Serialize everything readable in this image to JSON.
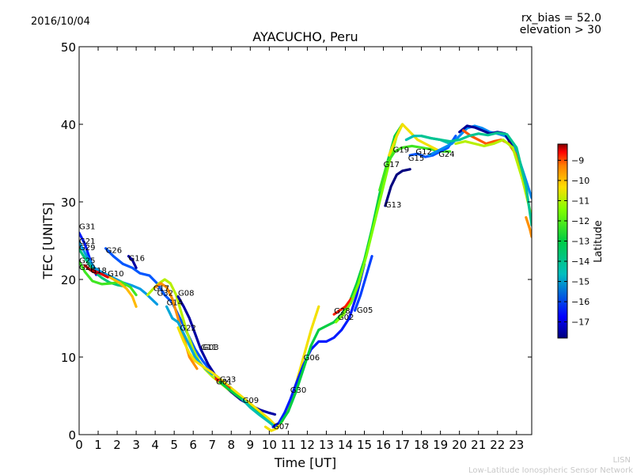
{
  "header": {
    "date": "2016/10/04",
    "rx_bias": "rx_bias = 52.0",
    "elevation": "elevation > 30"
  },
  "footer": {
    "lisn": "LISN",
    "network": "Low-Latitude Ionospheric Sensor Network"
  },
  "colors": {
    "axes": "#000000",
    "background": "#ffffff",
    "colormap": [
      "#00007f",
      "#0000ff",
      "#007fff",
      "#00bfbf",
      "#00cc44",
      "#7fff00",
      "#ffdd00",
      "#ff7f00",
      "#ff0000",
      "#7f0000"
    ]
  },
  "chart_data": {
    "type": "line",
    "title": "AYACUCHO, Peru",
    "xlabel": "Time [UT]",
    "ylabel": "TEC [UNITS]",
    "xlim": [
      0,
      23.8
    ],
    "ylim": [
      0,
      50
    ],
    "xticks": [
      0,
      1,
      2,
      3,
      4,
      5,
      6,
      7,
      8,
      9,
      10,
      11,
      12,
      13,
      14,
      15,
      16,
      17,
      18,
      19,
      20,
      21,
      22,
      23
    ],
    "yticks": [
      0,
      10,
      20,
      30,
      40,
      50
    ],
    "grid": false,
    "colorbar": {
      "label": "Latitude",
      "range": [
        -17.8,
        -8.2
      ],
      "ticks": [
        -9,
        -10,
        -11,
        -12,
        -13,
        -14,
        -15,
        -16,
        -17
      ]
    },
    "series": [
      {
        "name": "G31",
        "latitude": -16.5,
        "x": [
          0.0,
          0.3,
          0.6,
          0.9
        ],
        "y": [
          26.0,
          24.6,
          22.4,
          20.6
        ]
      },
      {
        "name": "G21",
        "latitude": -15.2,
        "x": [
          0.0,
          0.4,
          0.8,
          1.3,
          1.8,
          2.3,
          2.8,
          3.2,
          3.5,
          3.8,
          4.1
        ],
        "y": [
          24.8,
          23.0,
          21.5,
          20.8,
          20.2,
          19.6,
          19.2,
          18.8,
          18.2,
          17.5,
          16.8
        ]
      },
      {
        "name": "G29",
        "latitude": -14.0,
        "x": [
          0.0,
          0.4,
          0.8,
          1.2,
          1.6,
          2.0,
          2.4
        ],
        "y": [
          23.9,
          22.4,
          21.0,
          20.2,
          19.6,
          19.3,
          19.1
        ]
      },
      {
        "name": "G25",
        "latitude": -13.0,
        "x": [
          0.0,
          0.3,
          0.7,
          1.2,
          1.7,
          2.2,
          2.7,
          3.0
        ],
        "y": [
          22.3,
          21.0,
          19.8,
          19.4,
          19.5,
          19.7,
          19.0,
          18.0
        ]
      },
      {
        "name": "G26",
        "latitude": -16.0,
        "x": [
          1.4,
          1.8,
          2.3,
          2.8,
          3.2,
          3.7,
          4.1,
          4.5,
          4.9,
          5.3,
          5.7,
          6.1,
          6.5,
          7.0,
          7.5,
          8.0
        ],
        "y": [
          24.0,
          23.0,
          22.0,
          21.5,
          20.8,
          20.5,
          19.5,
          18.0,
          17.0,
          15.0,
          13.0,
          11.0,
          9.5,
          8.0,
          7.0,
          6.0
        ]
      },
      {
        "name": "G16",
        "latitude": -17.5,
        "x": [
          2.6,
          2.8,
          3.0
        ],
        "y": [
          23.0,
          22.5,
          21.5
        ]
      },
      {
        "name": "G10",
        "latitude": -11.0,
        "x": [
          1.6,
          2.1,
          2.5,
          2.8,
          3.0
        ],
        "y": [
          20.3,
          19.6,
          18.8,
          17.8,
          16.5
        ]
      },
      {
        "name": "G18",
        "latitude": -9.0,
        "x": [
          0.7,
          1.1,
          1.5
        ],
        "y": [
          21.2,
          20.8,
          20.3
        ]
      },
      {
        "name": "G23",
        "latitude": -8.5,
        "x": [
          0.3,
          0.6,
          0.9
        ],
        "y": [
          21.8,
          21.2,
          20.8
        ]
      },
      {
        "name": "G17",
        "latitude": -12.0,
        "x": [
          3.6,
          3.9,
          4.2,
          4.5,
          4.8,
          5.1,
          5.4,
          5.7,
          6.0,
          6.3,
          6.6,
          7.0,
          7.5,
          8.0,
          8.5
        ],
        "y": [
          18.0,
          18.8,
          19.5,
          20.0,
          19.5,
          18.0,
          15.5,
          13.0,
          11.0,
          9.5,
          8.5,
          7.5,
          6.5,
          5.5,
          4.5
        ]
      },
      {
        "name": "G32",
        "latitude": -10.5,
        "x": [
          4.0,
          4.3,
          4.6,
          4.9,
          5.2,
          5.5,
          5.8,
          6.2
        ],
        "y": [
          19.0,
          19.5,
          19.0,
          17.5,
          15.0,
          12.5,
          10.0,
          8.5
        ]
      },
      {
        "name": "G08",
        "latitude": -17.5,
        "x": [
          5.2,
          5.5,
          5.8,
          6.1,
          6.4,
          6.8,
          7.2,
          7.6,
          8.0,
          8.5,
          9.0,
          9.5,
          10.0,
          10.3
        ],
        "y": [
          17.8,
          16.5,
          15.0,
          13.0,
          11.0,
          9.0,
          7.5,
          6.5,
          5.5,
          4.5,
          3.8,
          3.2,
          2.8,
          2.6
        ]
      },
      {
        "name": "G14",
        "latitude": -15.0,
        "x": [
          4.6,
          4.9,
          5.2,
          5.5,
          5.8,
          6.1,
          6.5,
          7.0
        ],
        "y": [
          16.5,
          15.0,
          14.5,
          13.0,
          11.5,
          10.0,
          8.8,
          7.8
        ]
      },
      {
        "name": "G22",
        "latitude": -11.5,
        "x": [
          5.2,
          5.5,
          5.8,
          6.1,
          6.5,
          7.0,
          7.5,
          8.0,
          8.5,
          9.0,
          9.5,
          10.0,
          10.4
        ],
        "y": [
          13.8,
          12.0,
          10.5,
          9.5,
          8.8,
          8.0,
          7.0,
          6.0,
          5.0,
          4.0,
          3.0,
          2.0,
          1.0
        ]
      },
      {
        "name": "G01",
        "latitude": -9.5,
        "x": [
          7.2,
          7.5,
          7.9
        ],
        "y": [
          7.2,
          6.6,
          6.0
        ]
      },
      {
        "name": "G03",
        "latitude": -13.5,
        "x": [
          7.4,
          7.8,
          8.2,
          8.6,
          9.0,
          9.5,
          10.0,
          10.4
        ],
        "y": [
          6.8,
          6.0,
          5.2,
          4.5,
          3.6,
          2.6,
          1.6,
          0.8
        ]
      },
      {
        "name": "G09",
        "latitude": -14.5,
        "x": [
          8.6,
          9.0,
          9.5,
          10.0,
          10.3
        ],
        "y": [
          4.5,
          3.5,
          2.5,
          1.6,
          1.0
        ]
      },
      {
        "name": "G07",
        "latitude": -11.5,
        "x": [
          9.8,
          10.1,
          10.4,
          10.7,
          11.0,
          11.4,
          11.8,
          12.2,
          12.6
        ],
        "y": [
          1.0,
          0.5,
          0.8,
          1.8,
          3.5,
          6.5,
          10.0,
          13.5,
          16.5
        ]
      },
      {
        "name": "G30",
        "latitude": -16.5,
        "x": [
          10.2,
          10.5,
          10.8,
          11.1,
          11.4,
          11.8,
          12.2,
          12.6,
          13.0,
          13.4,
          13.8,
          14.2,
          14.6,
          15.0
        ],
        "y": [
          1.0,
          1.5,
          2.8,
          4.5,
          6.5,
          9.0,
          11.0,
          12.0,
          12.0,
          12.5,
          13.5,
          15.0,
          18.0,
          22.0
        ]
      },
      {
        "name": "G06",
        "latitude": -13.5,
        "x": [
          10.6,
          11.0,
          11.4,
          11.8,
          12.2,
          12.6,
          13.0,
          13.4,
          13.8,
          14.2,
          14.6,
          15.0,
          15.4,
          15.8,
          16.2,
          16.6,
          17.0
        ],
        "y": [
          1.5,
          3.0,
          5.5,
          8.5,
          11.5,
          13.5,
          14.0,
          14.5,
          15.5,
          17.0,
          19.5,
          22.5,
          26.5,
          31.0,
          35.0,
          38.5,
          40.0
        ]
      },
      {
        "name": "G28",
        "latitude": -9.5,
        "x": [
          13.4,
          13.7,
          14.0,
          14.3
        ],
        "y": [
          15.5,
          16.0,
          16.5,
          17.5
        ]
      },
      {
        "name": "G02",
        "latitude": -12.5,
        "x": [
          13.5,
          13.9,
          14.3,
          14.7,
          15.1,
          15.5,
          15.9,
          16.3,
          16.7,
          17.0
        ],
        "y": [
          14.5,
          15.5,
          17.0,
          19.5,
          23.0,
          27.0,
          31.0,
          35.0,
          38.5,
          40.0
        ]
      },
      {
        "name": "G05",
        "latitude": -16.2,
        "x": [
          14.5,
          14.8,
          15.1,
          15.4
        ],
        "y": [
          16.0,
          18.0,
          20.5,
          23.0
        ]
      },
      {
        "name": "G13",
        "latitude": -17.8,
        "x": [
          16.1,
          16.4,
          16.7,
          17.0,
          17.4
        ],
        "y": [
          29.5,
          32.0,
          33.5,
          34.0,
          34.2
        ]
      },
      {
        "name": "G17",
        "latitude": -13.0,
        "x": [
          15.8,
          16.2,
          16.6,
          17.0,
          17.5,
          18.0,
          18.5,
          19.0,
          19.5
        ],
        "y": [
          31.5,
          35.0,
          36.5,
          37.0,
          37.2,
          37.0,
          36.8,
          36.5,
          36.5
        ]
      },
      {
        "name": "G19",
        "latitude": -11.5,
        "x": [
          16.3,
          16.7,
          17.0,
          17.4,
          17.8,
          18.2,
          18.6,
          19.0
        ],
        "y": [
          36.0,
          38.5,
          40.0,
          39.0,
          38.0,
          37.5,
          37.0,
          36.5
        ]
      },
      {
        "name": "G12",
        "latitude": -14.5,
        "x": [
          17.2,
          17.6,
          18.0,
          18.5,
          19.0,
          19.5
        ],
        "y": [
          38.0,
          38.5,
          38.5,
          38.2,
          38.0,
          37.5
        ]
      },
      {
        "name": "G15",
        "latitude": -16.0,
        "x": [
          17.4,
          17.8,
          18.2,
          18.6,
          19.0,
          19.4,
          19.8
        ],
        "y": [
          36.0,
          36.2,
          35.8,
          36.0,
          36.5,
          37.0,
          38.5
        ]
      },
      {
        "name": "G24",
        "latitude": -15.5,
        "x": [
          18.4,
          18.8,
          19.2,
          19.6,
          20.0,
          20.4,
          20.8,
          21.2,
          21.6,
          22.0,
          22.4,
          22.8,
          23.2,
          23.6,
          23.8
        ],
        "y": [
          36.0,
          36.5,
          37.0,
          37.5,
          38.5,
          39.5,
          39.8,
          39.5,
          39.0,
          38.8,
          38.5,
          37.5,
          35.0,
          32.0,
          30.5
        ]
      },
      {
        "name": "",
        "latitude": -17.6,
        "x": [
          20.0,
          20.4,
          20.8,
          21.2,
          21.6,
          22.0,
          22.4,
          22.8
        ],
        "y": [
          39.0,
          39.8,
          39.6,
          39.2,
          38.8,
          39.0,
          38.8,
          37.0
        ]
      },
      {
        "name": "",
        "latitude": -10.0,
        "x": [
          20.2,
          20.6,
          21.0,
          21.4,
          21.8,
          22.2,
          22.6,
          23.0,
          23.3
        ],
        "y": [
          39.2,
          38.5,
          38.0,
          37.5,
          37.8,
          38.0,
          37.5,
          36.0,
          33.0
        ]
      },
      {
        "name": "",
        "latitude": -12.0,
        "x": [
          19.8,
          20.3,
          20.8,
          21.3,
          21.8,
          22.3,
          22.8,
          23.3,
          23.8
        ],
        "y": [
          37.5,
          37.8,
          37.5,
          37.2,
          37.5,
          38.0,
          37.0,
          33.0,
          28.0
        ]
      },
      {
        "name": "",
        "latitude": -14.2,
        "x": [
          18.0,
          18.5,
          19.0,
          19.5,
          20.0,
          20.5,
          21.0,
          21.5,
          22.0,
          22.5,
          23.0,
          23.5,
          23.8
        ],
        "y": [
          38.5,
          38.2,
          38.0,
          37.8,
          38.0,
          38.5,
          38.8,
          38.6,
          38.9,
          38.7,
          37.0,
          32.0,
          27.0
        ]
      },
      {
        "name": "",
        "latitude": -10.5,
        "x": [
          23.5,
          23.7,
          23.8
        ],
        "y": [
          28.0,
          26.5,
          25.5
        ]
      }
    ],
    "satellite_labels": [
      {
        "text": "G31",
        "x": 0.0,
        "y": 26.5
      },
      {
        "text": "G21",
        "x": 0.0,
        "y": 24.6
      },
      {
        "text": "G29",
        "x": 0.0,
        "y": 23.8
      },
      {
        "text": "G26",
        "x": 1.4,
        "y": 23.4
      },
      {
        "text": "G16",
        "x": 2.6,
        "y": 22.4
      },
      {
        "text": "G25",
        "x": 0.0,
        "y": 22.1
      },
      {
        "text": "G20",
        "x": 0.0,
        "y": 21.2
      },
      {
        "text": "G18",
        "x": 0.6,
        "y": 20.8
      },
      {
        "text": "G10",
        "x": 1.5,
        "y": 20.4
      },
      {
        "text": "G17",
        "x": 3.9,
        "y": 18.5
      },
      {
        "text": "G32",
        "x": 4.1,
        "y": 17.9
      },
      {
        "text": "G08",
        "x": 5.2,
        "y": 17.9
      },
      {
        "text": "G14",
        "x": 4.6,
        "y": 16.7
      },
      {
        "text": "G22",
        "x": 5.3,
        "y": 13.4
      },
      {
        "text": "G11",
        "x": 6.4,
        "y": 10.9
      },
      {
        "text": "G03",
        "x": 6.5,
        "y": 10.9
      },
      {
        "text": "G23",
        "x": 7.4,
        "y": 6.8
      },
      {
        "text": "G01",
        "x": 7.2,
        "y": 6.5
      },
      {
        "text": "G09",
        "x": 8.6,
        "y": 4.1
      },
      {
        "text": "G30",
        "x": 11.1,
        "y": 5.4
      },
      {
        "text": "G07",
        "x": 10.2,
        "y": 0.7
      },
      {
        "text": "G06",
        "x": 11.8,
        "y": 9.6
      },
      {
        "text": "G28",
        "x": 13.4,
        "y": 15.6
      },
      {
        "text": "G02",
        "x": 13.6,
        "y": 14.8
      },
      {
        "text": "G05",
        "x": 14.6,
        "y": 15.7
      },
      {
        "text": "G13",
        "x": 16.1,
        "y": 29.3
      },
      {
        "text": "G17",
        "x": 16.0,
        "y": 34.5
      },
      {
        "text": "G19",
        "x": 16.5,
        "y": 36.4
      },
      {
        "text": "G12",
        "x": 17.7,
        "y": 36.1
      },
      {
        "text": "G15",
        "x": 17.3,
        "y": 35.3
      },
      {
        "text": "G24",
        "x": 18.9,
        "y": 35.8
      }
    ]
  }
}
